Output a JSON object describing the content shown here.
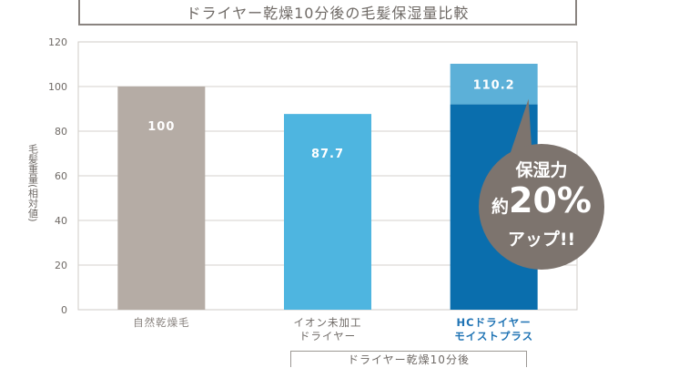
{
  "title": "ドライヤー乾燥10分後の毛髪保湿量比較",
  "chart_data": {
    "type": "bar",
    "ylabel": "毛髪重量(相対値)",
    "ylim": [
      0,
      120
    ],
    "yticks": [
      0,
      20,
      40,
      60,
      80,
      100,
      120
    ],
    "grid": true,
    "categories": [
      {
        "lines": [
          "自然乾燥毛"
        ],
        "color": "#8a8480"
      },
      {
        "lines": [
          "イオン未加工",
          "ドライヤー"
        ],
        "color": "#6f6a66"
      },
      {
        "lines": [
          "HCドライヤー",
          "モイストプラス"
        ],
        "color": "#1f73b4"
      }
    ],
    "values": [
      100,
      87.7,
      110.2
    ],
    "value_labels": [
      "100",
      "87.7",
      "110.2"
    ],
    "bar_colors": [
      "#b5aca5",
      "#4eb5e0",
      "#0a6ead"
    ],
    "highlight_base": 92,
    "highlight_top_color": "#5cb0d8",
    "group_label": "ドライヤー乾燥10分後"
  },
  "callout": {
    "line1": "保湿力",
    "line2_prefix": "約",
    "line2_value": "20%",
    "line3": "アップ!!",
    "color": "#7d746e"
  }
}
